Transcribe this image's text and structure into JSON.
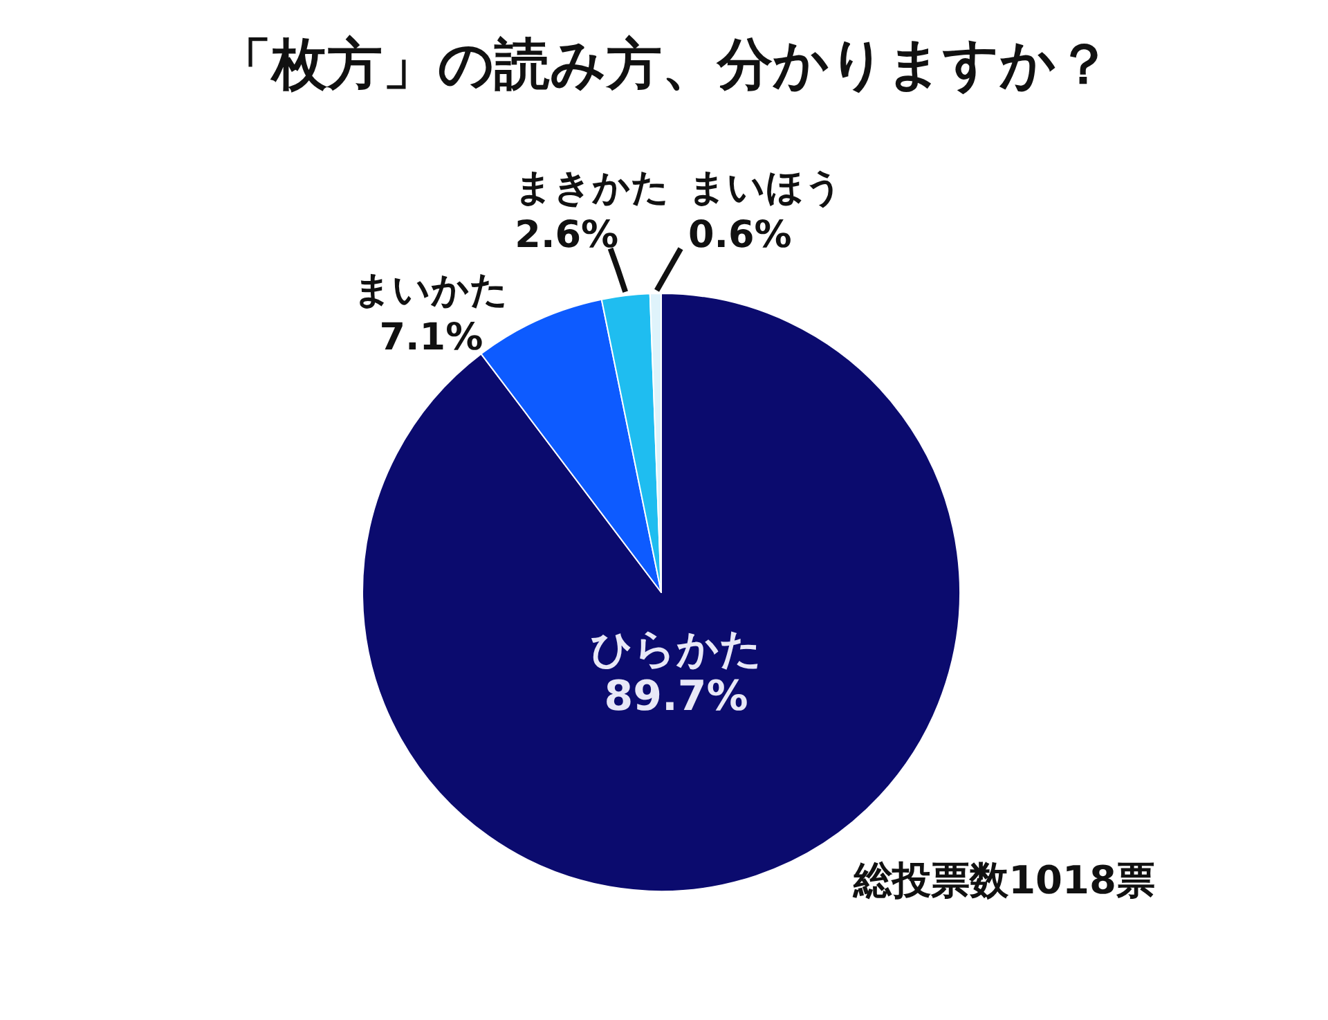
{
  "chart_data": {
    "type": "pie",
    "title": "「枚方」の読み方、分かりますか？",
    "categories": [
      "ひらかた",
      "まいかた",
      "まきかた",
      "まいほう"
    ],
    "values": [
      89.7,
      7.1,
      2.6,
      0.6
    ],
    "colors": [
      "#0b0b6e",
      "#0d5bff",
      "#1fbdf0",
      "#dff3fb"
    ],
    "value_labels": [
      "89.7%",
      "7.1%",
      "2.6%",
      "0.6%"
    ],
    "annotations": [
      "総投票数1018票"
    ]
  }
}
